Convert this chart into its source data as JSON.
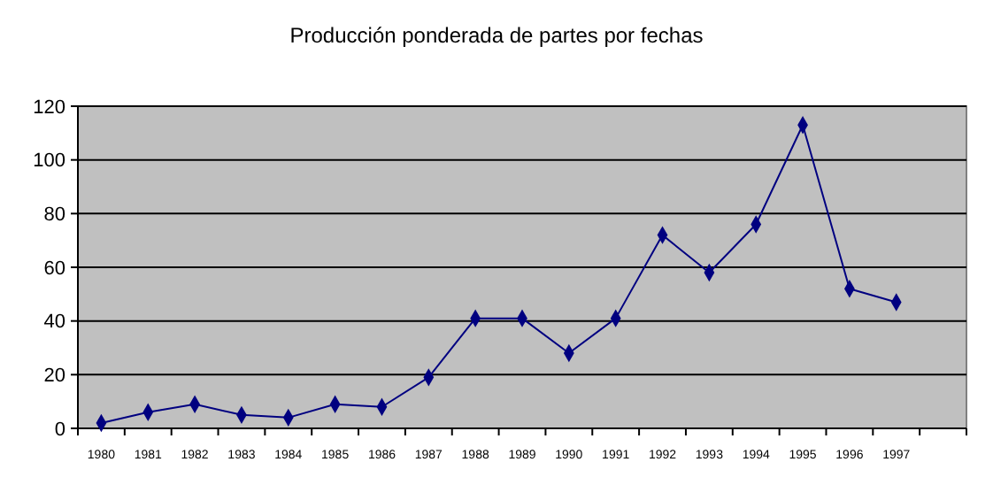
{
  "chart_data": {
    "type": "line",
    "title": "Producción ponderada de partes por fechas",
    "categories": [
      "1980",
      "1981",
      "1982",
      "1983",
      "1984",
      "1985",
      "1986",
      "1987",
      "1988",
      "1989",
      "1990",
      "1991",
      "1992",
      "1993",
      "1994",
      "1995",
      "1996",
      "1997",
      null
    ],
    "series": [
      {
        "color": "#000080",
        "values": [
          2,
          6,
          9,
          5,
          4,
          9,
          8,
          19,
          41,
          41,
          28,
          41,
          72,
          58,
          76,
          113,
          52,
          47,
          null
        ]
      }
    ],
    "ylim": [
      0,
      120
    ],
    "yticks": [
      0,
      20,
      40,
      60,
      80,
      100,
      120
    ],
    "grid": "y",
    "marker": "diamond"
  }
}
